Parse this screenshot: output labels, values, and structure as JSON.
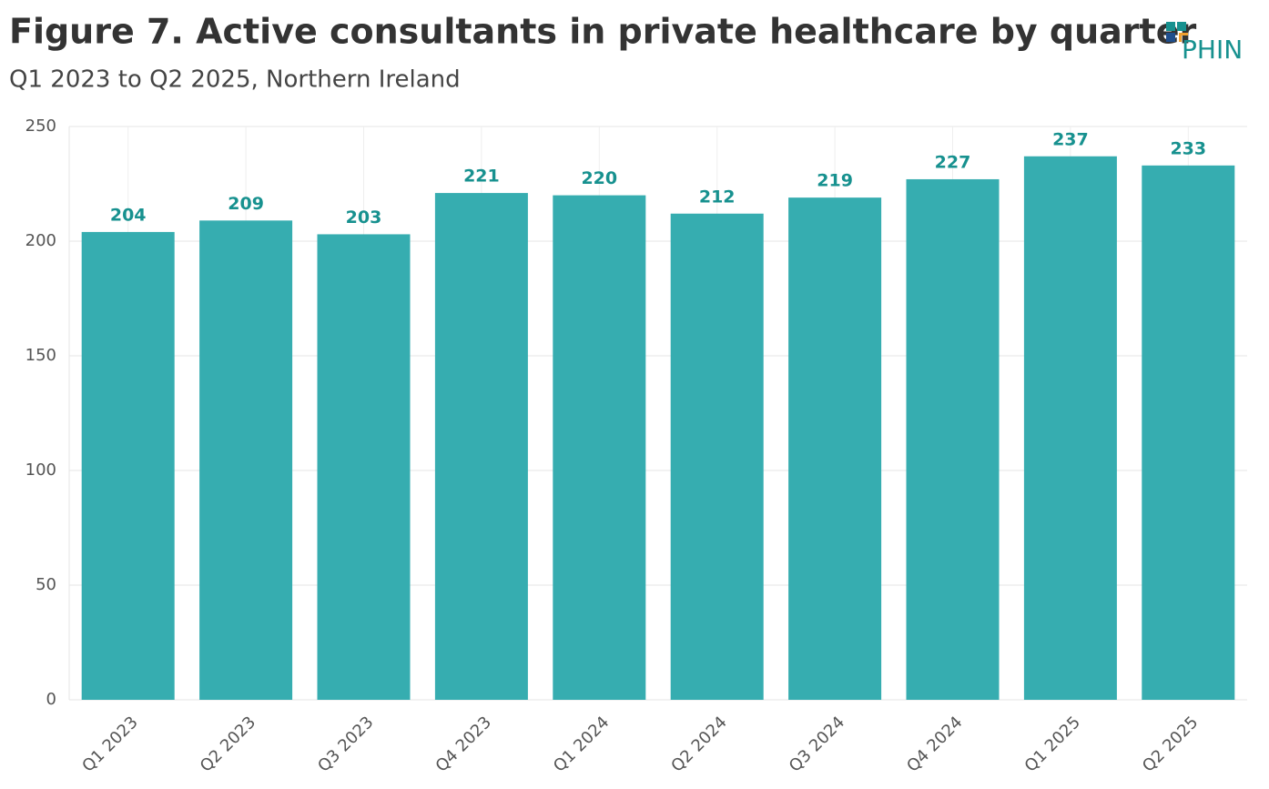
{
  "chart_data": {
    "type": "bar",
    "title": "Figure 7. Active consultants in private healthcare by quarter",
    "subtitle": "Q1 2023 to Q2 2025, Northern Ireland",
    "logo": "PHIN",
    "categories": [
      "Q1 2023",
      "Q2 2023",
      "Q3 2023",
      "Q4 2023",
      "Q1 2024",
      "Q2 2024",
      "Q3 2024",
      "Q4 2024",
      "Q1 2025",
      "Q2 2025"
    ],
    "values": [
      204,
      209,
      203,
      221,
      220,
      212,
      219,
      227,
      237,
      233
    ],
    "color": "#36adb0",
    "label_color": "#17918f",
    "ylim": [
      0,
      250
    ],
    "yticks": [
      0,
      50,
      100,
      150,
      200,
      250
    ],
    "grid": true
  }
}
